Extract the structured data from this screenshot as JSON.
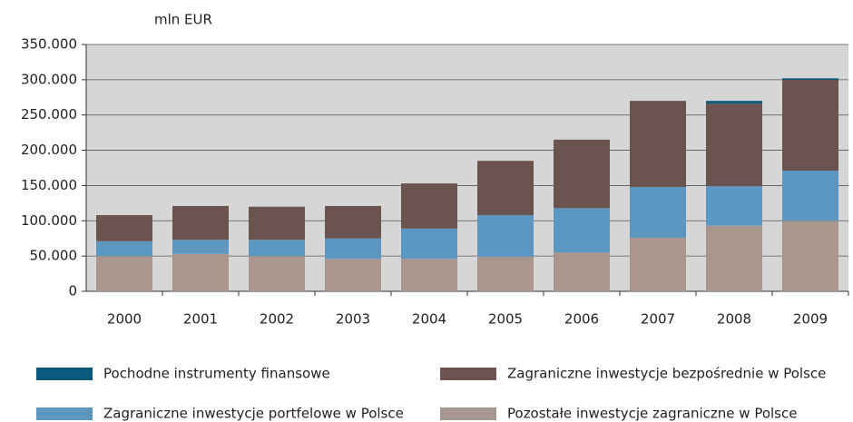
{
  "chart_data": {
    "type": "bar",
    "stacked": true,
    "y_label": "mln EUR",
    "categories": [
      "2000",
      "2001",
      "2002",
      "2003",
      "2004",
      "2005",
      "2006",
      "2007",
      "2008",
      "2009"
    ],
    "series": [
      {
        "name": "Pozostałe inwestycje zagraniczne w Polsce",
        "color": "#a9968f",
        "values": [
          50000,
          53000,
          50000,
          46000,
          46000,
          49000,
          55000,
          76000,
          93000,
          100000
        ]
      },
      {
        "name": "Zagraniczne inwestycje portfelowe w Polsce",
        "color": "#5b97c0",
        "values": [
          21000,
          20000,
          23000,
          29000,
          43000,
          59000,
          63000,
          72000,
          56000,
          71000
        ]
      },
      {
        "name": "Zagraniczne inwestycje bezpośrednie w Polsce",
        "color": "#6b5450",
        "values": [
          37000,
          48000,
          47000,
          46000,
          64000,
          77000,
          97000,
          122000,
          117000,
          129000
        ]
      },
      {
        "name": "Pochodne instrumenty finansowe",
        "color": "#0d5a7f",
        "values": [
          0,
          0,
          0,
          0,
          0,
          0,
          0,
          0,
          4000,
          2000
        ]
      }
    ],
    "ylim": [
      0,
      350000
    ],
    "yticks": [
      0,
      {
        "value": 50000,
        "label": "50.000"
      },
      {
        "value": 100000,
        "label": "100.000"
      },
      {
        "value": 150000,
        "label": "150.000"
      },
      {
        "value": 200000,
        "label": "200.000"
      },
      {
        "value": 250000,
        "label": "250.000"
      },
      {
        "value": 300000,
        "label": "300.000"
      },
      {
        "value": 350000,
        "label": "350.000"
      }
    ],
    "grid": true,
    "legend": "bottom"
  }
}
